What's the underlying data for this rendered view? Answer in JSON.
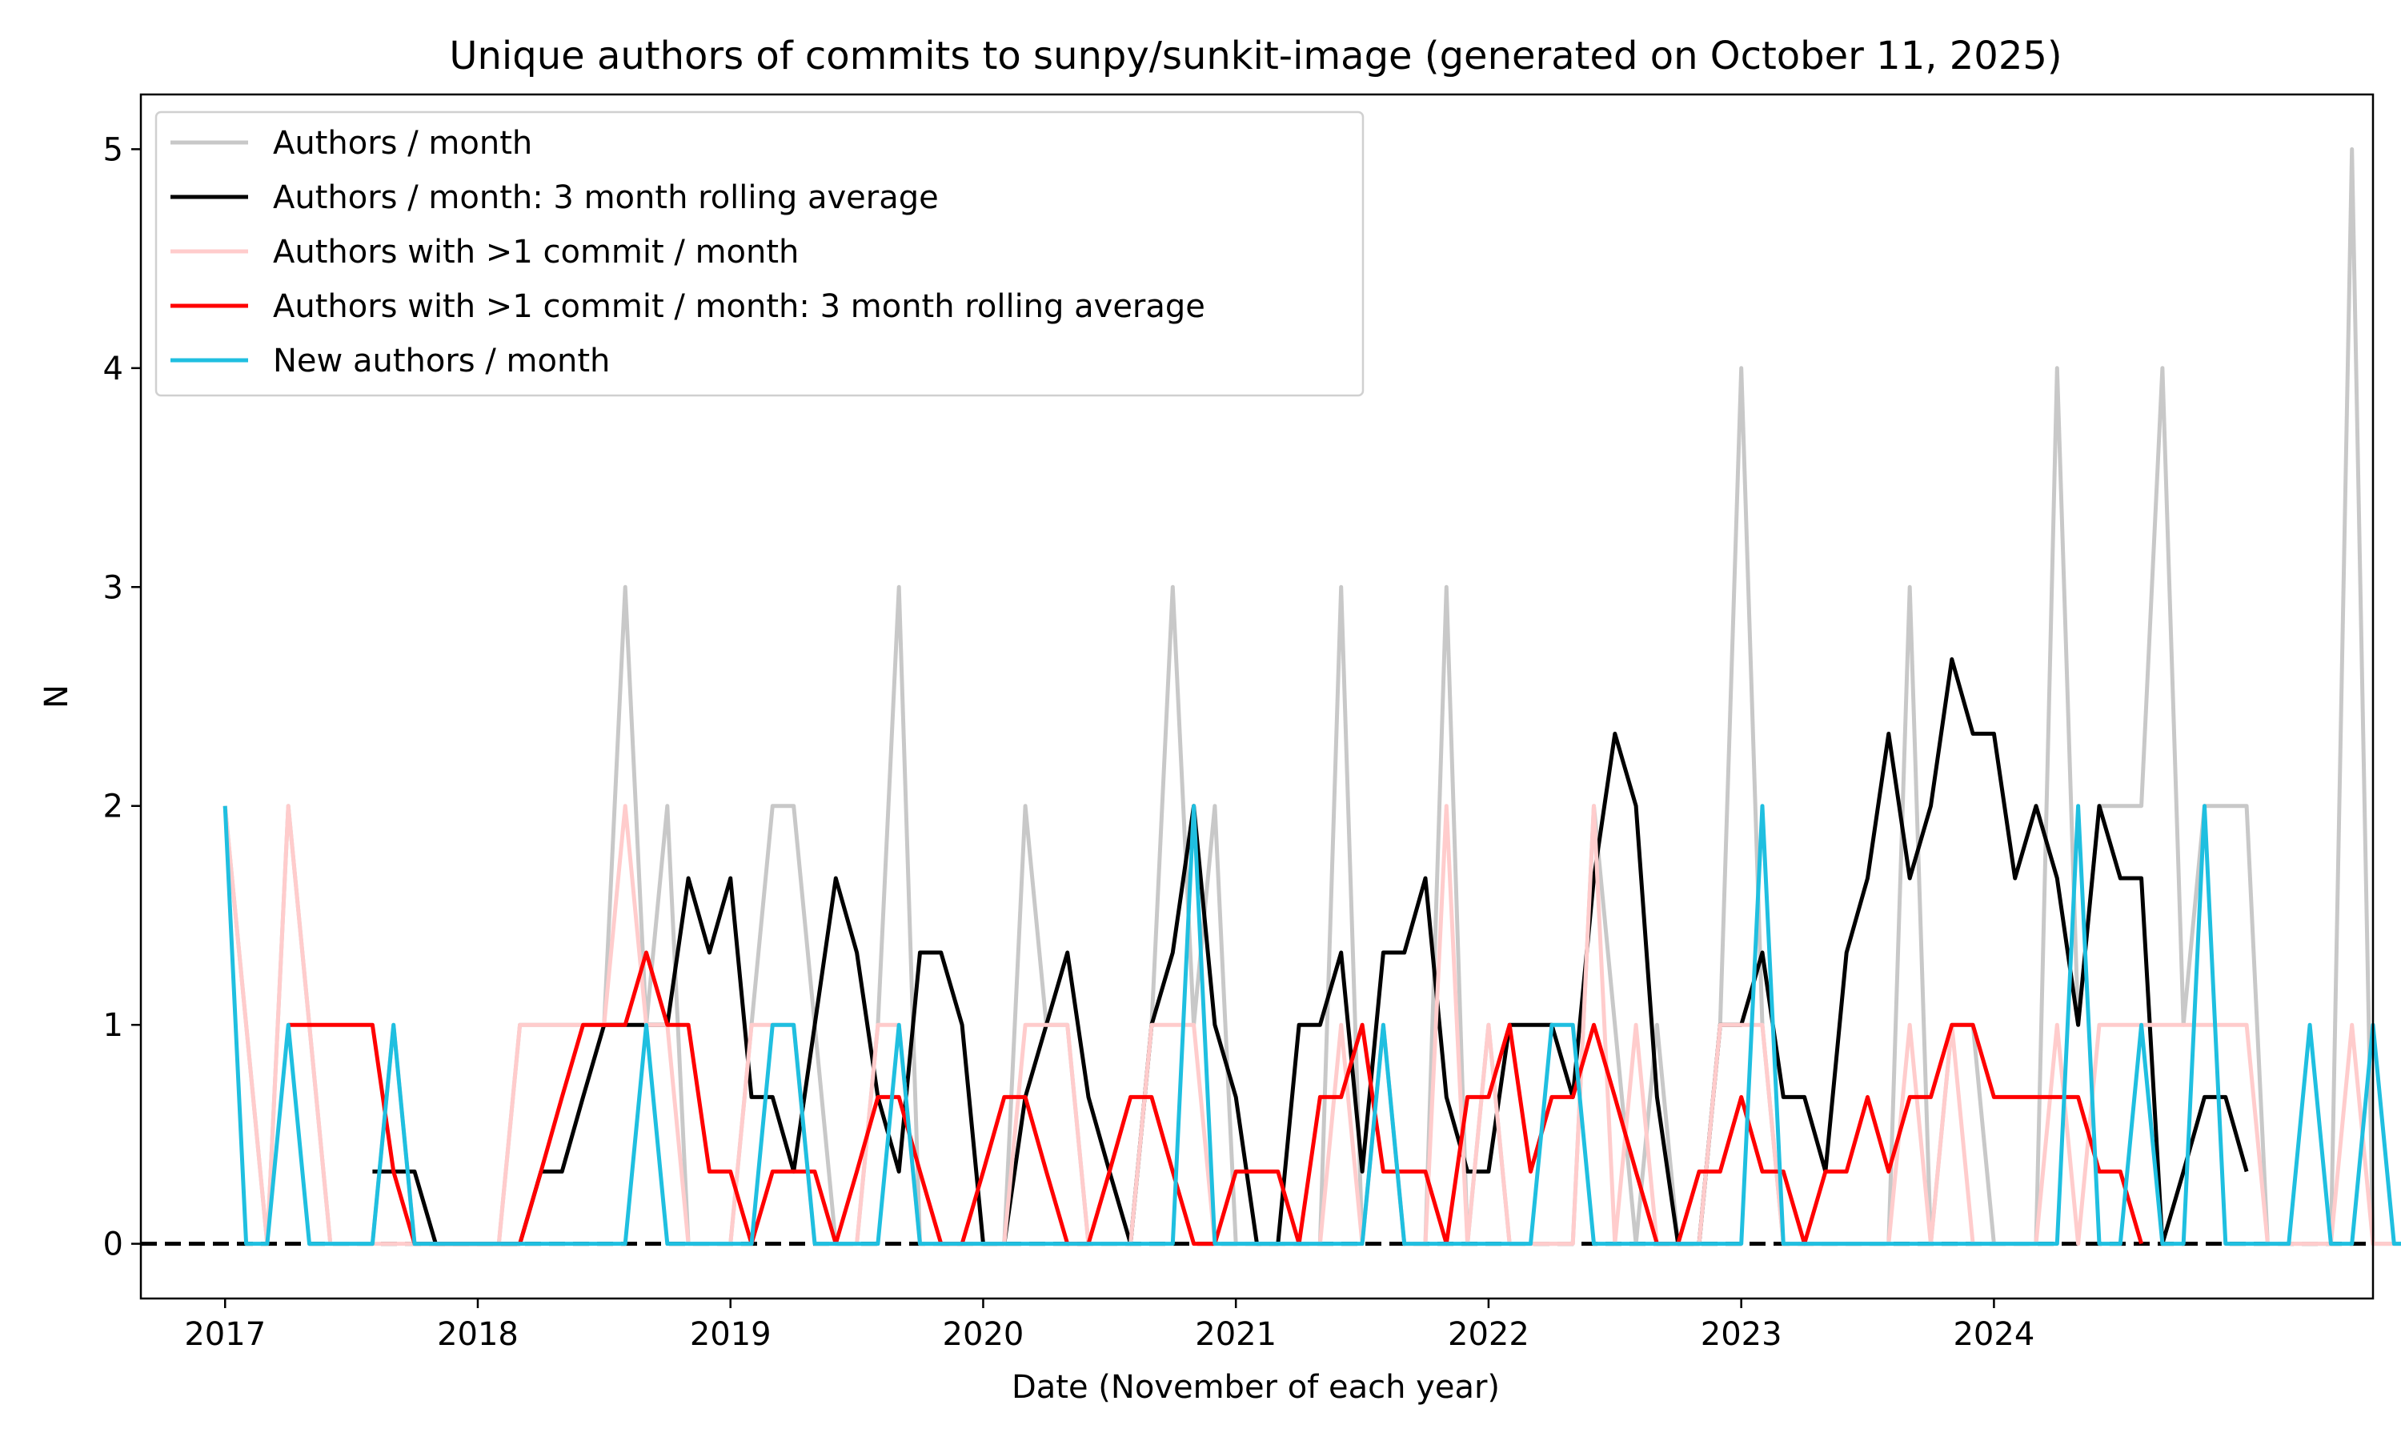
{
  "chart_data": {
    "type": "line",
    "title": "Unique authors of commits to sunpy/sunkit-image (generated on October 11, 2025)",
    "xlabel": "Date (November of each year)",
    "ylabel": "N",
    "x_ticks": [
      "2017",
      "2018",
      "2019",
      "2020",
      "2021",
      "2022",
      "2023",
      "2024"
    ],
    "y_ticks": [
      "0",
      "1",
      "2",
      "3",
      "4",
      "5"
    ],
    "xlim": [
      "2016-07",
      "2025-05"
    ],
    "ylim": [
      -0.25,
      5.25
    ],
    "grid": false,
    "legend_position": "top-left",
    "reference_line": {
      "y": 0,
      "style": "dashed",
      "color": "#000000"
    },
    "x_start": "2016-11",
    "x_frequency": "monthly",
    "series": [
      {
        "name": "Authors / month",
        "color": "#c8c8c8",
        "values": [
          2,
          1,
          0,
          2,
          1,
          0,
          0,
          0,
          1,
          0,
          0,
          0,
          0,
          0,
          1,
          1,
          1,
          1,
          1,
          3,
          1,
          2,
          0,
          0,
          0,
          1,
          2,
          2,
          1,
          0,
          0,
          1,
          3,
          0,
          0,
          0,
          0,
          0,
          2,
          1,
          1,
          0,
          0,
          0,
          1,
          3,
          1,
          2,
          0,
          0,
          0,
          0,
          0,
          3,
          0,
          1,
          0,
          0,
          3,
          0,
          1,
          0,
          0,
          0,
          0,
          2,
          1,
          0,
          1,
          0,
          0,
          1,
          4,
          1,
          0,
          0,
          0,
          0,
          0,
          0,
          3,
          0,
          1,
          1,
          0,
          0,
          0,
          4,
          1,
          2,
          2,
          2,
          4,
          1,
          2,
          2,
          2,
          0,
          0,
          0,
          0,
          5,
          0,
          0,
          0,
          1,
          1,
          0
        ],
        "x_end": "2024-10"
      },
      {
        "name": "Authors / month: 3 month rolling average",
        "color": "#000000",
        "values": [
          0.33,
          0.33,
          0.33,
          0,
          0,
          0,
          0,
          0,
          0.33,
          0.33,
          0.67,
          1,
          1,
          1,
          1,
          1.67,
          1.33,
          1.67,
          0.67,
          0.67,
          0.33,
          1,
          1.67,
          1.33,
          0.67,
          0.33,
          1.33,
          1.33,
          1,
          0,
          0,
          0.67,
          1,
          1.33,
          0.67,
          0.33,
          0,
          1,
          1.33,
          2,
          1,
          0.67,
          0,
          0,
          1,
          1,
          1.33,
          0.33,
          1.33,
          1.33,
          1.67,
          0.67,
          0.33,
          0.33,
          1,
          1,
          1,
          0.67,
          1.67,
          2.33,
          2,
          0.67,
          0,
          0,
          1,
          1,
          1.33,
          0.67,
          0.67,
          0.33,
          1.33,
          1.67,
          2.33,
          1.67,
          2,
          2.67,
          2.33,
          2.33,
          1.67,
          2,
          1.67,
          1,
          2,
          1.67,
          1.67,
          0,
          0.33,
          0.67,
          0.67,
          0.33
        ],
        "x_start": "2017-06",
        "x_end": "2024-10"
      },
      {
        "name": "Authors with >1 commit / month",
        "color": "#ffcccc",
        "values": [
          2,
          1,
          0,
          2,
          1,
          0,
          0,
          0,
          0,
          0,
          0,
          0,
          0,
          0,
          1,
          1,
          1,
          1,
          1,
          2,
          1,
          1,
          0,
          0,
          0,
          1,
          1,
          1,
          0,
          0,
          0,
          1,
          1,
          0,
          0,
          0,
          0,
          0,
          1,
          1,
          1,
          0,
          0,
          0,
          1,
          1,
          1,
          0,
          0,
          0,
          0,
          0,
          0,
          1,
          0,
          1,
          0,
          0,
          2,
          0,
          1,
          0,
          0,
          0,
          0,
          2,
          0,
          1,
          0,
          0,
          0,
          1,
          1,
          1,
          0,
          0,
          0,
          0,
          0,
          0,
          1,
          0,
          1,
          0,
          0,
          0,
          0,
          1,
          0,
          1,
          1,
          1,
          1,
          1,
          1,
          1,
          1,
          0,
          0,
          0,
          0,
          1,
          0,
          0,
          0,
          0,
          0,
          0
        ],
        "x_end": "2024-10"
      },
      {
        "name": "Authors with >1 commit / month: 3 month rolling average",
        "color": "#ff0000",
        "values": [
          1,
          1,
          1,
          1,
          1,
          0.33,
          0,
          0,
          0,
          0,
          0,
          0,
          0.33,
          0.67,
          1,
          1,
          1,
          1.33,
          1,
          1,
          0.33,
          0.33,
          0,
          0.33,
          0.33,
          0.33,
          0,
          0.33,
          0.67,
          0.67,
          0.33,
          0,
          0,
          0.33,
          0.67,
          0.67,
          0.33,
          0,
          0,
          0.33,
          0.67,
          0.67,
          0.33,
          0,
          0,
          0.33,
          0.33,
          0.33,
          0,
          0.67,
          0.67,
          1,
          0.33,
          0.33,
          0.33,
          0,
          0.67,
          0.67,
          1,
          0.33,
          0.67,
          0.67,
          1,
          0.67,
          0.33,
          0,
          0,
          0.33,
          0.33,
          0.67,
          0.33,
          0.33,
          0,
          0.33,
          0.33,
          0.67,
          0.33,
          0.67,
          0.67,
          1,
          1,
          0.67,
          0.67,
          0.67,
          0.67,
          0.67,
          0.33,
          0.33,
          0
        ],
        "x_start": "2017-02",
        "x_end": "2024-06"
      },
      {
        "name": "New authors / month",
        "color": "#1fbfe0",
        "values": [
          2,
          0,
          0,
          1,
          0,
          0,
          0,
          0,
          1,
          0,
          0,
          0,
          0,
          0,
          0,
          0,
          0,
          0,
          0,
          0,
          1,
          0,
          0,
          0,
          0,
          0,
          1,
          1,
          0,
          0,
          0,
          0,
          1,
          0,
          0,
          0,
          0,
          0,
          0,
          0,
          0,
          0,
          0,
          0,
          0,
          0,
          2,
          0,
          0,
          0,
          0,
          0,
          0,
          0,
          0,
          1,
          0,
          0,
          0,
          0,
          0,
          0,
          0,
          1,
          1,
          0,
          0,
          0,
          0,
          0,
          0,
          0,
          0,
          2,
          0,
          0,
          0,
          0,
          0,
          0,
          0,
          0,
          0,
          0,
          0,
          0,
          0,
          0,
          2,
          0,
          0,
          1,
          0,
          0,
          2,
          0,
          0,
          0,
          0,
          1,
          0,
          0,
          1,
          0,
          0,
          0,
          0,
          0,
          0,
          0
        ],
        "x_end": "2025-02"
      }
    ]
  }
}
